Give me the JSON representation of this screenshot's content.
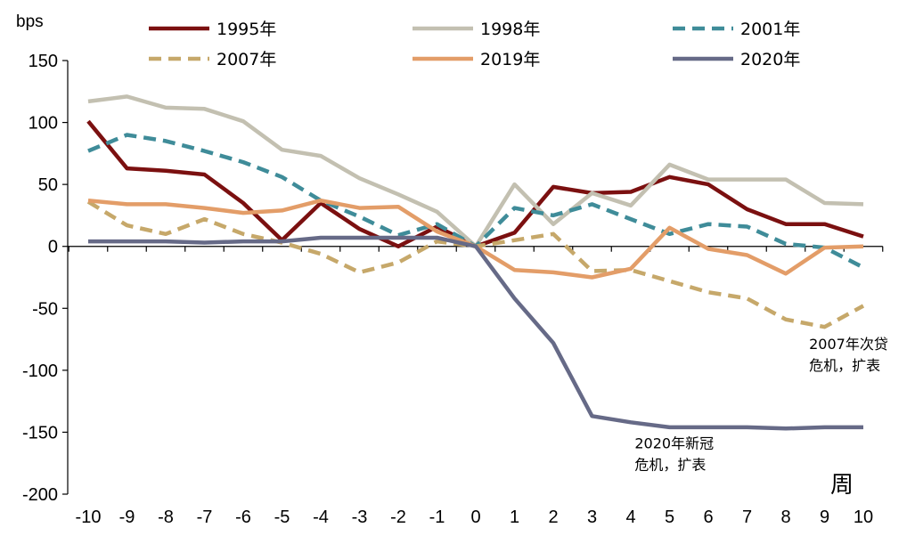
{
  "chart_data": {
    "type": "line",
    "y_unit": "bps",
    "x_unit": "周",
    "x": [
      -10,
      -9,
      -8,
      -7,
      -6,
      -5,
      -4,
      -3,
      -2,
      -1,
      0,
      1,
      2,
      3,
      4,
      5,
      6,
      7,
      8,
      9,
      10
    ],
    "ylim": [
      -200,
      150
    ],
    "yticks": [
      150,
      100,
      50,
      0,
      -50,
      -100,
      -150,
      -200
    ],
    "legend_position": "top",
    "series": [
      {
        "name": "1995年",
        "color": "#7b1010",
        "dash": false,
        "values": [
          101,
          63,
          61,
          58,
          35,
          5,
          35,
          14,
          0,
          16,
          0,
          11,
          48,
          43,
          44,
          56,
          50,
          30,
          18,
          18,
          8
        ]
      },
      {
        "name": "1998年",
        "color": "#c3c0b1",
        "dash": false,
        "values": [
          117,
          121,
          112,
          111,
          101,
          78,
          73,
          55,
          42,
          28,
          0,
          50,
          18,
          43,
          33,
          66,
          54,
          54,
          54,
          35,
          34
        ]
      },
      {
        "name": "2001年",
        "color": "#3f8c99",
        "dash": true,
        "values": [
          77,
          90,
          85,
          77,
          68,
          56,
          37,
          24,
          9,
          18,
          0,
          31,
          25,
          34,
          22,
          10,
          18,
          16,
          2,
          -1,
          -17
        ]
      },
      {
        "name": "2007年",
        "color": "#c6a86a",
        "dash": true,
        "values": [
          36,
          17,
          10,
          22,
          10,
          3,
          -6,
          -21,
          -13,
          4,
          0,
          5,
          10,
          -20,
          -19,
          -28,
          -37,
          -42,
          -59,
          -65,
          -48
        ]
      },
      {
        "name": "2019年",
        "color": "#e39d68",
        "dash": false,
        "values": [
          37,
          34,
          34,
          31,
          27,
          29,
          37,
          31,
          32,
          12,
          0,
          -19,
          -21,
          -25,
          -18,
          15,
          -2,
          -7,
          -22,
          -1,
          0
        ]
      },
      {
        "name": "2020年",
        "color": "#666a87",
        "dash": false,
        "values": [
          4,
          4,
          4,
          3,
          4,
          4,
          7,
          7,
          7,
          7,
          0,
          -42,
          -78,
          -137,
          -142,
          -146,
          -146,
          -146,
          -147,
          -146,
          -146
        ]
      }
    ],
    "annotations": [
      {
        "lines": [
          "2007年次贷",
          "危机，扩表"
        ],
        "x": 8.6,
        "y": -83
      },
      {
        "lines": [
          "2020年新冠",
          "危机，扩表"
        ],
        "x": 4.1,
        "y": -163
      }
    ]
  }
}
